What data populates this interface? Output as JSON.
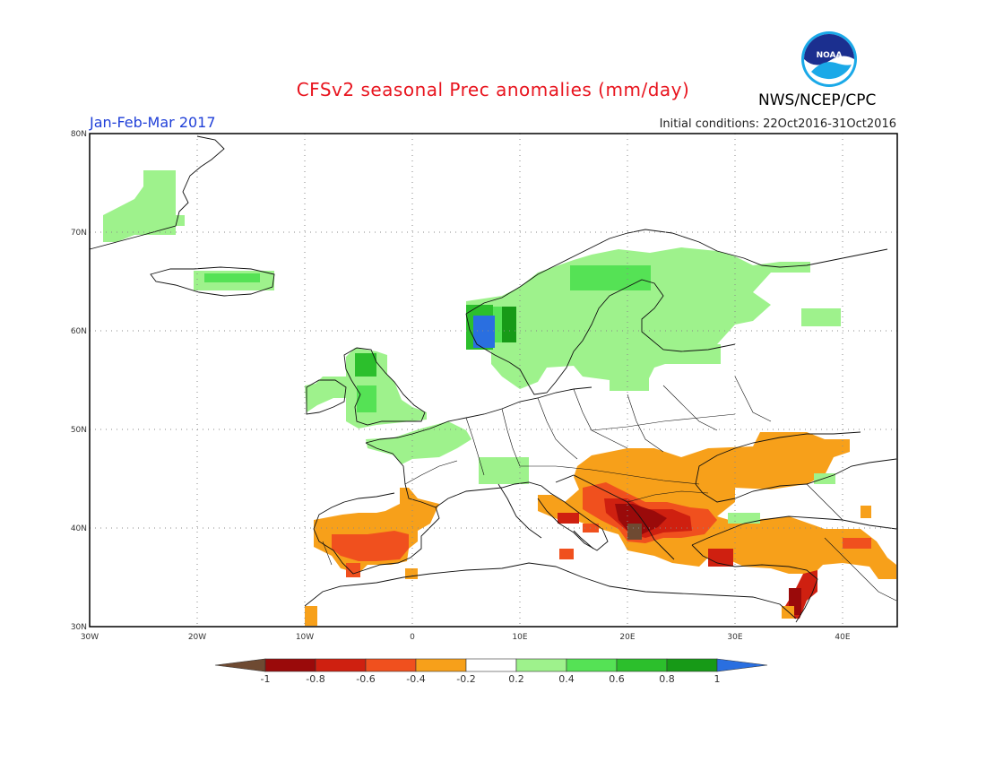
{
  "header": {
    "title": "CFSv2 seasonal Prec anomalies (mm/day)",
    "agency": "NWS/NCEP/CPC",
    "season": "Jan-Feb-Mar 2017",
    "initial_conditions": "Initial conditions: 22Oct2016-31Oct2016",
    "logo_text": "NOAA"
  },
  "map": {
    "lat_labels": [
      "80N",
      "70N",
      "60N",
      "50N",
      "40N",
      "30N"
    ],
    "lon_labels": [
      "30W",
      "20W",
      "10W",
      "0",
      "10E",
      "20E",
      "30E",
      "40E"
    ]
  },
  "colorbar": {
    "labels": [
      "-1",
      "-0.8",
      "-0.6",
      "-0.4",
      "-0.2",
      "0.2",
      "0.4",
      "0.6",
      "0.8",
      "1"
    ],
    "colors": [
      "#6e4a32",
      "#9a0a0a",
      "#cf2010",
      "#f0501e",
      "#f7a01a",
      "#ffffff",
      "#9ef28c",
      "#55e255",
      "#2cbf2c",
      "#179a17",
      "#2a6fe0"
    ]
  },
  "colors": {
    "dry_extreme": "#6e4a32",
    "dry_strong": "#9a0a0a",
    "dry_moderate": "#cf2010",
    "dry_light": "#f0501e",
    "dry_weak": "#f7a01a",
    "wet_weak": "#9ef28c",
    "wet_light": "#55e255",
    "wet_moderate": "#2cbf2c",
    "wet_strong": "#179a17",
    "wet_extreme": "#2a6fe0"
  }
}
